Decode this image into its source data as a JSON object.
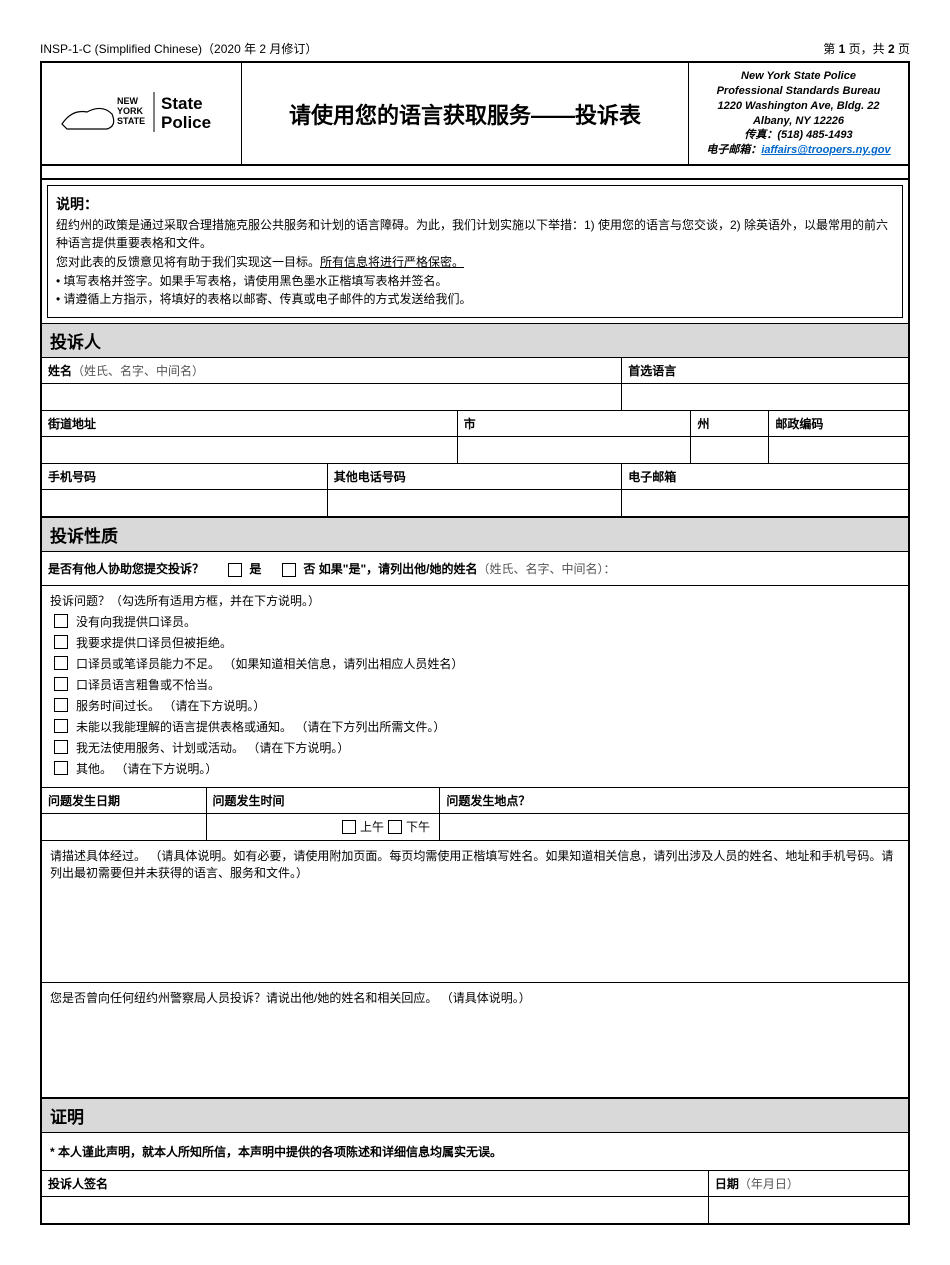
{
  "header": {
    "form_id": "INSP-1-C (Simplified Chinese)（2020 年 2 月修订）",
    "page": "第 1 页，共 2 页",
    "page_prefix": "第 ",
    "page_num": "1",
    "page_mid": " 页，共 ",
    "page_total": "2",
    "page_suffix": " 页"
  },
  "title": "请使用您的语言获取服务——投诉表",
  "address": {
    "l1": "New York State Police",
    "l2": "Professional Standards Bureau",
    "l3": "1220 Washington Ave, Bldg. 22",
    "l4": "Albany, NY 12226",
    "fax_label": "传真：",
    "fax": "(518) 485-1493",
    "email_label": "电子邮箱：",
    "email": "iaffairs@troopers.ny.gov"
  },
  "instructions": {
    "head": "说明：",
    "p1": "纽约州的政策是通过采取合理措施克服公共服务和计划的语言障碍。为此，我们计划实施以下举措：1) 使用您的语言与您交谈，2) 除英语外，以最常用的前六种语言提供重要表格和文件。",
    "p2a": "您对此表的反馈意见将有助于我们实现这一目标。",
    "p2b": "所有信息将进行严格保密。",
    "b1": "• 填写表格并签字。如果手写表格，请使用黑色墨水正楷填写表格并签名。",
    "b2": "• 请遵循上方指示，将填好的表格以邮寄、传真或电子邮件的方式发送给我们。"
  },
  "sections": {
    "complainant": "投诉人",
    "nature": "投诉性质",
    "cert": "证明"
  },
  "labels": {
    "name": "姓名",
    "name_hint": "（姓氏、名字、中间名）",
    "pref_lang": "首选语言",
    "street": "街道地址",
    "city": "市",
    "state": "州",
    "zip": "邮政编码",
    "mobile": "手机号码",
    "other_phone": "其他电话号码",
    "email": "电子邮箱",
    "assisted_q": "是否有他人协助您提交投诉？",
    "yes": "是",
    "no": "否",
    "if_yes": " 如果\"是\"，请列出他/她的姓名",
    "if_yes_hint": "（姓氏、名字、中间名）：",
    "problem_head": "投诉问题？",
    "problem_hint": "（勾选所有适用方框，并在下方说明。）",
    "date": "问题发生日期",
    "time": "问题发生时间",
    "where": "问题发生地点？",
    "am": "上午",
    "pm": "下午",
    "describe": "请描述具体经过。",
    "describe_hint": "（请具体说明。如有必要，请使用附加页面。每页均需使用正楷填写姓名。如果知道相关信息，请列出涉及人员的姓名、地址和手机号码。请列出最初需要但并未获得的语言、服务和文件。）",
    "prior": "您是否曾向任何纽约州警察局人员投诉？请说出他/她的姓名和相关回应。",
    "prior_hint": "（请具体说明。）",
    "cert_text": "* 本人谨此声明，就本人所知所信，本声明中提供的各项陈述和详细信息均属实无误。",
    "signature": "投诉人签名",
    "date_sig": "日期",
    "date_sig_hint": "（年月日）"
  },
  "problems": [
    {
      "text": "没有向我提供口译员。",
      "hint": ""
    },
    {
      "text": "我要求提供口译员但被拒绝。",
      "hint": ""
    },
    {
      "text": "口译员或笔译员能力不足。",
      "hint": "（如果知道相关信息，请列出相应人员姓名）"
    },
    {
      "text": "口译员语言粗鲁或不恰当。",
      "hint": ""
    },
    {
      "text": "服务时间过长。",
      "hint": "（请在下方说明。）"
    },
    {
      "text": "未能以我能理解的语言提供表格或通知。",
      "hint": "（请在下方列出所需文件。）"
    },
    {
      "text": "我无法使用服务、计划或活动。",
      "hint": "（请在下方说明。）"
    },
    {
      "text": "其他。",
      "hint": "（请在下方说明。）"
    }
  ],
  "widths": {
    "name": "67%",
    "lang": "33%",
    "street": "48%",
    "city": "27%",
    "state": "9%",
    "zip": "16%",
    "mobile": "33%",
    "ophone": "34%",
    "email": "33%",
    "date": "19%",
    "time": "27%",
    "where": "54%",
    "sig": "77%",
    "dsig": "23%"
  }
}
